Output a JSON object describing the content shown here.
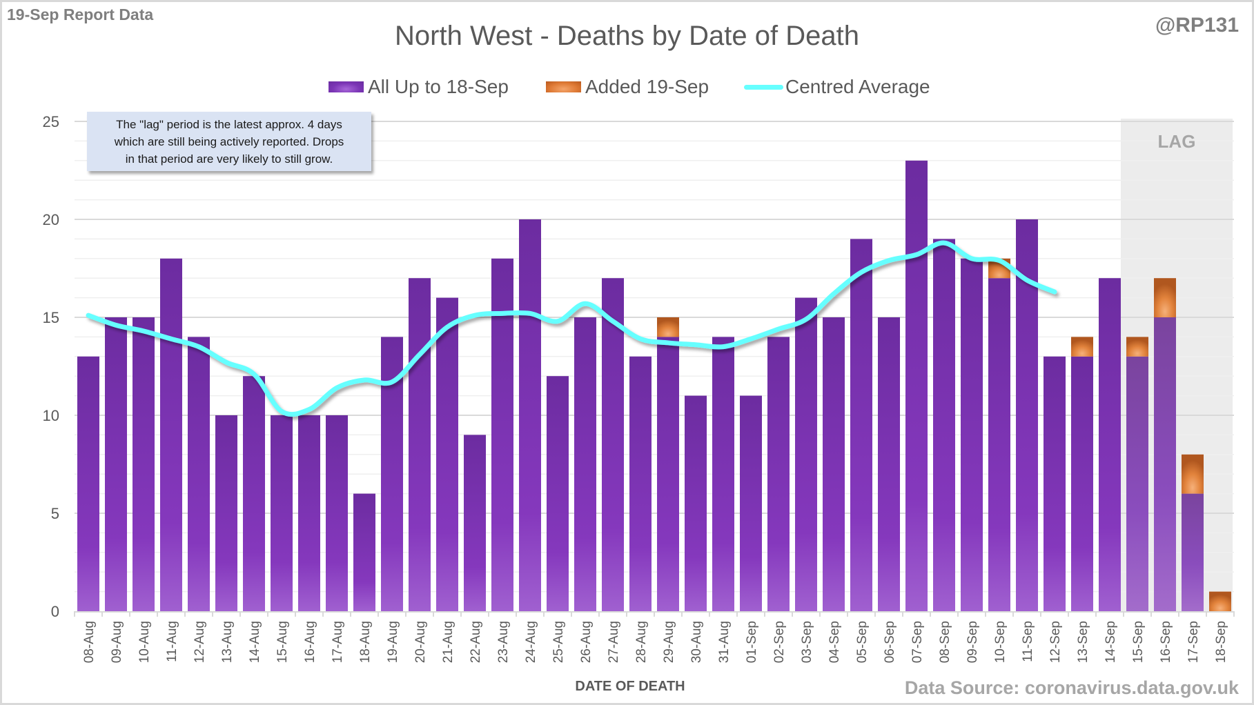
{
  "header": {
    "report_label": "19-Sep Report Data",
    "handle": "@RP131"
  },
  "annotation": {
    "lines": [
      "The \"lag\" period is the latest approx. 4 days",
      "which are still being actively reported.  Drops",
      "in that period are very likely to still grow."
    ]
  },
  "lag_label": "LAG",
  "footer": {
    "source": "Data Source: coronavirus.data.gov.uk"
  },
  "colors": {
    "all_up_to": "#7b35b5",
    "added": "#df7a35",
    "average": "#66ffff",
    "lag_shade": "#ececec",
    "annotation_bg": "#dae3f3"
  },
  "chart_data": {
    "type": "bar",
    "stacked": true,
    "title": "North West - Deaths by Date of Death",
    "xlabel": "DATE OF DEATH",
    "ylabel": "",
    "ylim": [
      0,
      25
    ],
    "yticks": [
      0,
      5,
      10,
      15,
      20,
      25
    ],
    "grid": true,
    "legend_position": "top",
    "categories": [
      "08-Aug",
      "09-Aug",
      "10-Aug",
      "11-Aug",
      "12-Aug",
      "13-Aug",
      "14-Aug",
      "15-Aug",
      "16-Aug",
      "17-Aug",
      "18-Aug",
      "19-Aug",
      "20-Aug",
      "21-Aug",
      "22-Aug",
      "23-Aug",
      "24-Aug",
      "25-Aug",
      "26-Aug",
      "27-Aug",
      "28-Aug",
      "29-Aug",
      "30-Aug",
      "31-Aug",
      "01-Sep",
      "02-Sep",
      "03-Sep",
      "04-Sep",
      "05-Sep",
      "06-Sep",
      "07-Sep",
      "08-Sep",
      "09-Sep",
      "10-Sep",
      "11-Sep",
      "12-Sep",
      "13-Sep",
      "14-Sep",
      "15-Sep",
      "16-Sep",
      "17-Sep",
      "18-Sep"
    ],
    "series": [
      {
        "name": "All Up to 18-Sep",
        "kind": "bar",
        "values": [
          13,
          15,
          15,
          18,
          14,
          10,
          12,
          10,
          10,
          10,
          6,
          14,
          17,
          16,
          9,
          18,
          20,
          12,
          15,
          17,
          13,
          14,
          11,
          14,
          11,
          14,
          16,
          15,
          19,
          15,
          23,
          19,
          18,
          17,
          20,
          13,
          13,
          17,
          13,
          15,
          6,
          0
        ]
      },
      {
        "name": "Added 19-Sep",
        "kind": "bar",
        "values": [
          0,
          0,
          0,
          0,
          0,
          0,
          0,
          0,
          0,
          0,
          0,
          0,
          0,
          0,
          0,
          0,
          0,
          0,
          0,
          0,
          0,
          1,
          0,
          0,
          0,
          0,
          0,
          0,
          0,
          0,
          0,
          0,
          0,
          1,
          0,
          0,
          1,
          0,
          1,
          2,
          2,
          1
        ]
      },
      {
        "name": "Centred Average",
        "kind": "line",
        "values": [
          15.1,
          14.6,
          14.3,
          13.9,
          13.5,
          12.7,
          12.1,
          10.2,
          10.3,
          11.4,
          11.8,
          11.7,
          13.1,
          14.5,
          15.1,
          15.2,
          15.2,
          14.8,
          15.7,
          14.8,
          13.9,
          13.7,
          13.6,
          13.5,
          13.9,
          14.4,
          14.9,
          16.2,
          17.3,
          17.9,
          18.2,
          18.8,
          18.0,
          17.9,
          16.9,
          16.3,
          null,
          null,
          null,
          null,
          null,
          null
        ]
      }
    ],
    "lag_period": [
      "15-Sep",
      "16-Sep",
      "17-Sep",
      "18-Sep"
    ]
  }
}
